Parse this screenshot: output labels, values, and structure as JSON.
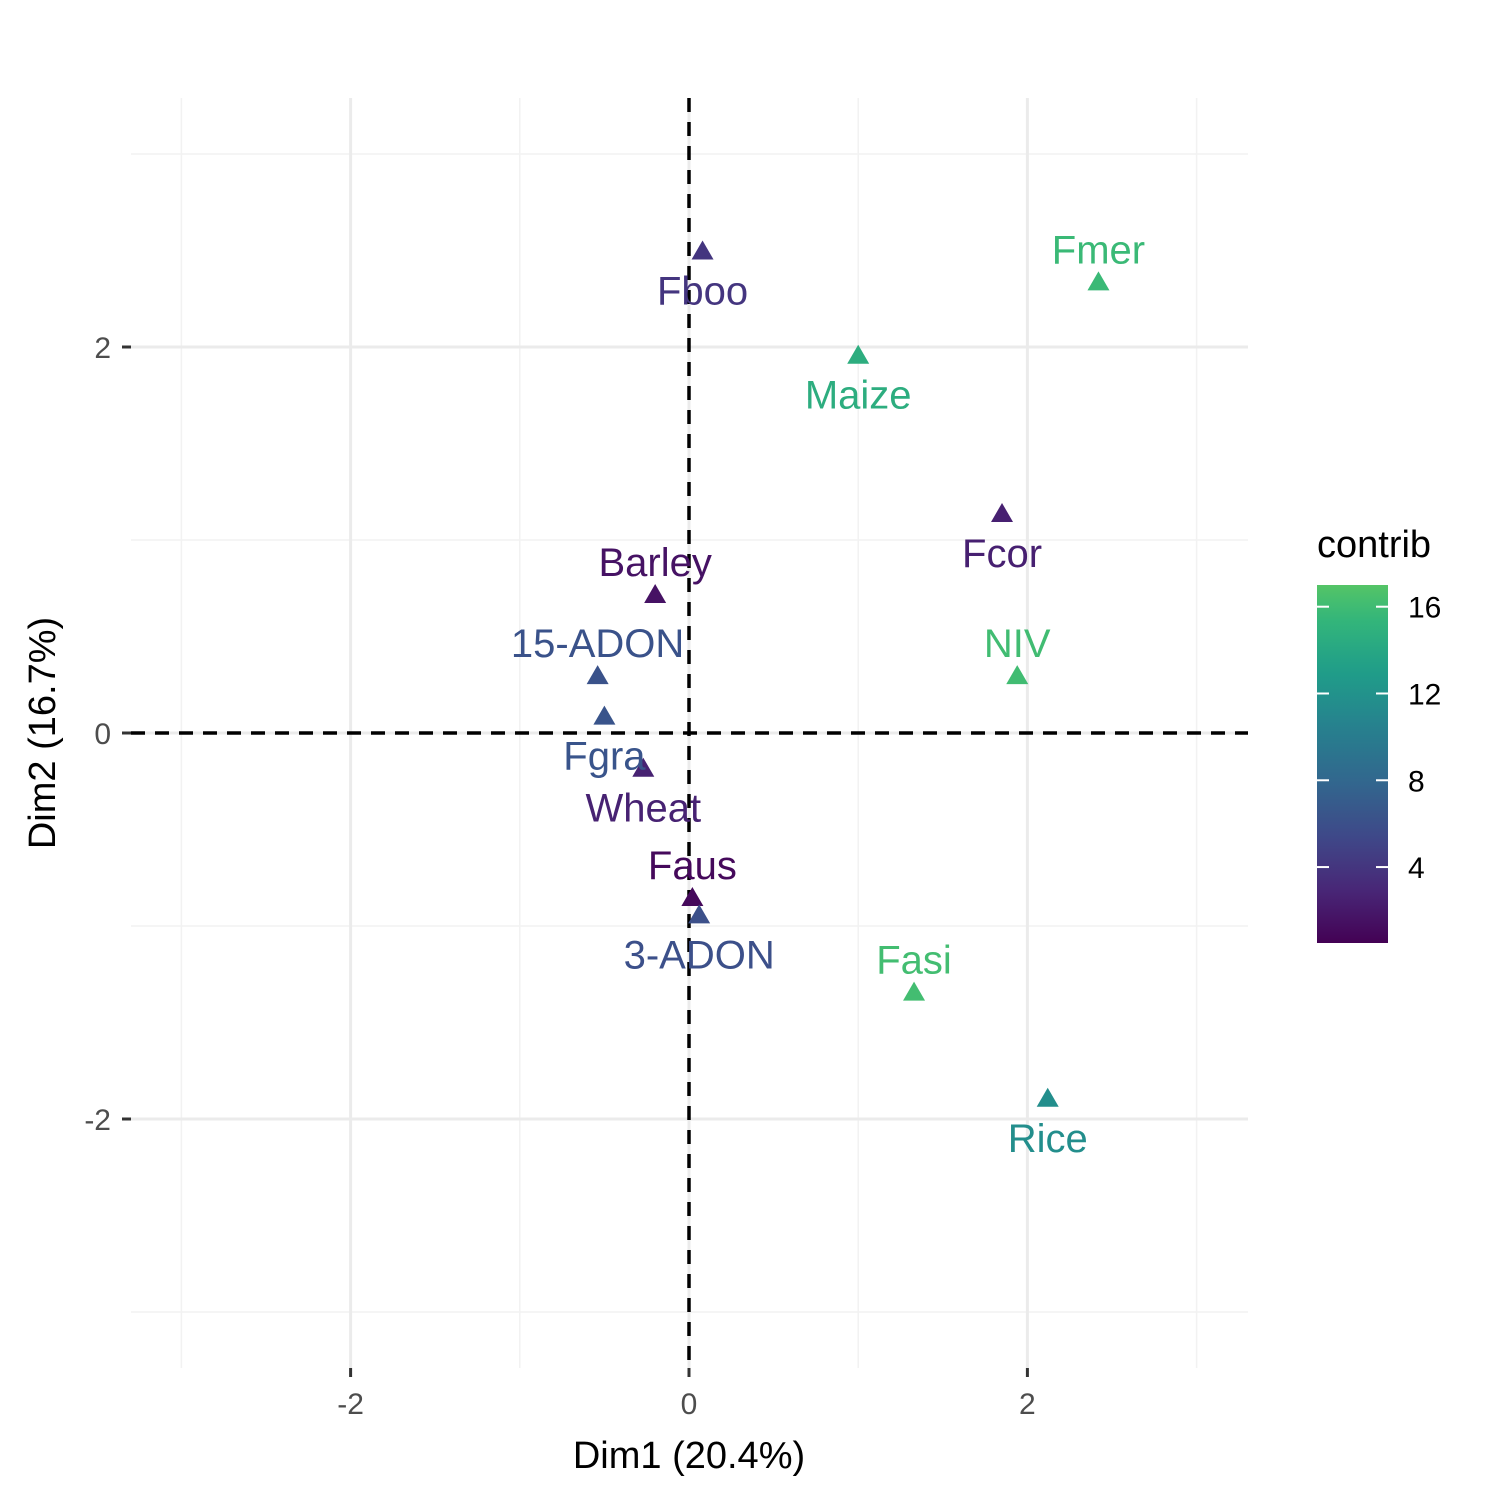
{
  "chart_data": {
    "type": "scatter",
    "title": "",
    "xlabel": "Dim1 (20.4%)",
    "ylabel": "Dim2 (16.7%)",
    "xlim": [
      -3.3,
      3.3
    ],
    "ylim": [
      -3.3,
      3.3
    ],
    "x_ticks": [
      -2,
      0,
      2
    ],
    "y_ticks": [
      -2,
      0,
      2
    ],
    "x_tick_labels": [
      "-2",
      "0",
      "2"
    ],
    "y_tick_labels": [
      "-2",
      "0",
      "2"
    ],
    "grid": true,
    "reference_lines": {
      "x": 0,
      "y": 0,
      "style": "dashed"
    },
    "marker": "triangle",
    "points": [
      {
        "label": "Fboo",
        "x": 0.08,
        "y": 2.5,
        "contrib": 4.0,
        "label_pos": "below"
      },
      {
        "label": "Fmer",
        "x": 2.42,
        "y": 2.34,
        "contrib": 15.8,
        "label_pos": "above"
      },
      {
        "label": "Maize",
        "x": 1.0,
        "y": 1.96,
        "contrib": 14.6,
        "label_pos": "below"
      },
      {
        "label": "Fcor",
        "x": 1.85,
        "y": 1.14,
        "contrib": 2.5,
        "label_pos": "below"
      },
      {
        "label": "Barley",
        "x": -0.2,
        "y": 0.72,
        "contrib": 1.6,
        "label_pos": "above"
      },
      {
        "label": "NIV",
        "x": 1.94,
        "y": 0.3,
        "contrib": 16.1,
        "label_pos": "above"
      },
      {
        "label": "15-ADON",
        "x": -0.54,
        "y": 0.3,
        "contrib": 6.2,
        "label_pos": "above"
      },
      {
        "label": "Fgra",
        "x": -0.5,
        "y": 0.09,
        "contrib": 6.4,
        "label_pos": "below"
      },
      {
        "label": "Wheat",
        "x": -0.27,
        "y": -0.18,
        "contrib": 2.6,
        "label_pos": "below"
      },
      {
        "label": "Faus",
        "x": 0.02,
        "y": -0.85,
        "contrib": 1.0,
        "label_pos": "above"
      },
      {
        "label": "3-ADON",
        "x": 0.06,
        "y": -0.94,
        "contrib": 6.0,
        "label_pos": "below"
      },
      {
        "label": "Fasi",
        "x": 1.33,
        "y": -1.34,
        "contrib": 16.2,
        "label_pos": "above"
      },
      {
        "label": "Rice",
        "x": 2.12,
        "y": -1.89,
        "contrib": 11.6,
        "label_pos": "below"
      }
    ],
    "legend": {
      "title": "contrib",
      "placement": "right",
      "type": "colorbar",
      "min": 0.5,
      "max": 17,
      "ticks": [
        4,
        8,
        12,
        16
      ],
      "tick_labels": [
        "4",
        "8",
        "12",
        "16"
      ],
      "palette": [
        "#440154",
        "#482878",
        "#3e4a89",
        "#31688e",
        "#26828e",
        "#1f9e89",
        "#35b779",
        "#6ece58",
        "#b5de2b",
        "#fde725"
      ],
      "palette_max_fraction": 0.73
    },
    "colors": {
      "grid_major": "#ebebeb",
      "grid_minor": "#f2f2f2",
      "reference_line": "#000000",
      "tick": "#333333"
    }
  }
}
